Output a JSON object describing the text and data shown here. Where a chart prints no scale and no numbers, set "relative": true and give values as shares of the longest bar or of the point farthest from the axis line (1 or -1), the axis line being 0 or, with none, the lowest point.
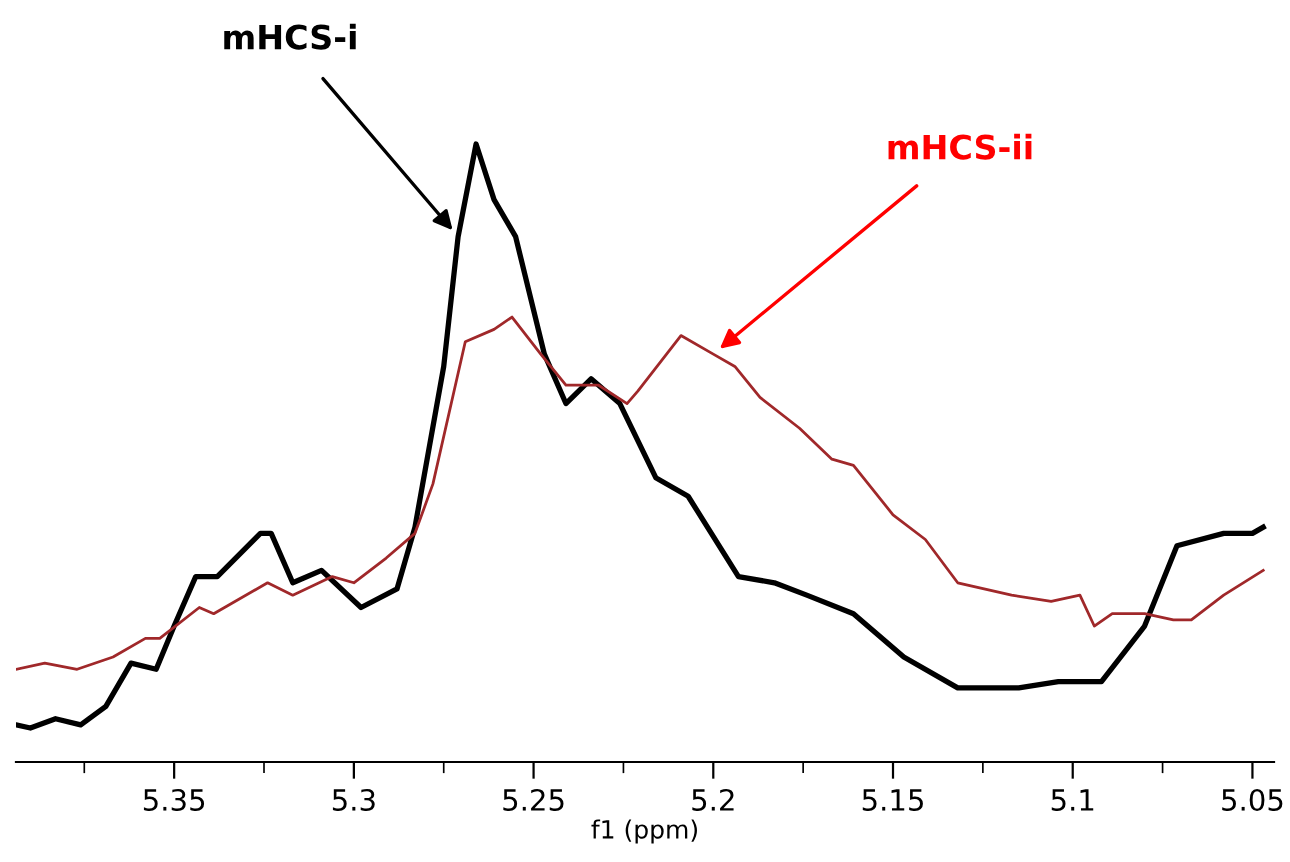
{
  "chart_data": {
    "type": "line",
    "relative": true,
    "xlabel": "f1 (ppm)",
    "xlim": [
      5.394,
      5.044
    ],
    "xticks": [
      {
        "value": 5.375,
        "label": null
      },
      5.35,
      {
        "value": 5.325,
        "label": null
      },
      5.3,
      {
        "value": 5.275,
        "label": null
      },
      5.25,
      {
        "value": 5.225,
        "label": null
      },
      5.2,
      {
        "value": 5.175,
        "label": null
      },
      5.15,
      {
        "value": 5.125,
        "label": null
      },
      5.1,
      {
        "value": 5.075,
        "label": null
      },
      5.05
    ],
    "tick_labels": "x",
    "grid": false,
    "marker": "none",
    "line_style": "solid",
    "series": [
      {
        "name": "mHCS-i",
        "color": "#000000",
        "x": [
          5.394,
          5.39,
          5.383,
          5.376,
          5.369,
          5.362,
          5.355,
          5.35,
          5.344,
          5.338,
          5.326,
          5.323,
          5.317,
          5.309,
          5.298,
          5.288,
          5.283,
          5.275,
          5.271,
          5.266,
          5.261,
          5.255,
          5.247,
          5.241,
          5.234,
          5.226,
          5.216,
          5.207,
          5.193,
          5.183,
          5.174,
          5.161,
          5.147,
          5.132,
          5.115,
          5.104,
          5.092,
          5.08,
          5.071,
          5.058,
          5.05,
          5.047
        ],
        "values": [
          0.06,
          0.055,
          0.07,
          0.06,
          0.09,
          0.16,
          0.15,
          0.22,
          0.3,
          0.3,
          0.37,
          0.37,
          0.29,
          0.31,
          0.25,
          0.28,
          0.38,
          0.64,
          0.85,
          1.0,
          0.91,
          0.85,
          0.66,
          0.58,
          0.62,
          0.58,
          0.46,
          0.43,
          0.3,
          0.29,
          0.27,
          0.24,
          0.17,
          0.12,
          0.12,
          0.13,
          0.13,
          0.22,
          0.35,
          0.37,
          0.37,
          0.38
        ]
      },
      {
        "name": "mHCS-ii",
        "color": "#a0282a",
        "x": [
          5.394,
          5.386,
          5.377,
          5.367,
          5.358,
          5.354,
          5.343,
          5.339,
          5.324,
          5.317,
          5.306,
          5.3,
          5.291,
          5.283,
          5.278,
          5.269,
          5.261,
          5.256,
          5.248,
          5.241,
          5.232,
          5.224,
          5.221,
          5.209,
          5.2,
          5.194,
          5.187,
          5.176,
          5.167,
          5.161,
          5.15,
          5.141,
          5.132,
          5.117,
          5.106,
          5.098,
          5.094,
          5.089,
          5.08,
          5.072,
          5.067,
          5.058,
          5.047
        ],
        "values": [
          0.15,
          0.16,
          0.15,
          0.17,
          0.2,
          0.2,
          0.25,
          0.24,
          0.29,
          0.27,
          0.3,
          0.29,
          0.33,
          0.37,
          0.45,
          0.68,
          0.7,
          0.72,
          0.66,
          0.61,
          0.61,
          0.58,
          0.6,
          0.69,
          0.66,
          0.64,
          0.59,
          0.54,
          0.49,
          0.48,
          0.4,
          0.36,
          0.29,
          0.27,
          0.26,
          0.27,
          0.22,
          0.24,
          0.24,
          0.23,
          0.23,
          0.27,
          0.31
        ]
      }
    ]
  }
}
